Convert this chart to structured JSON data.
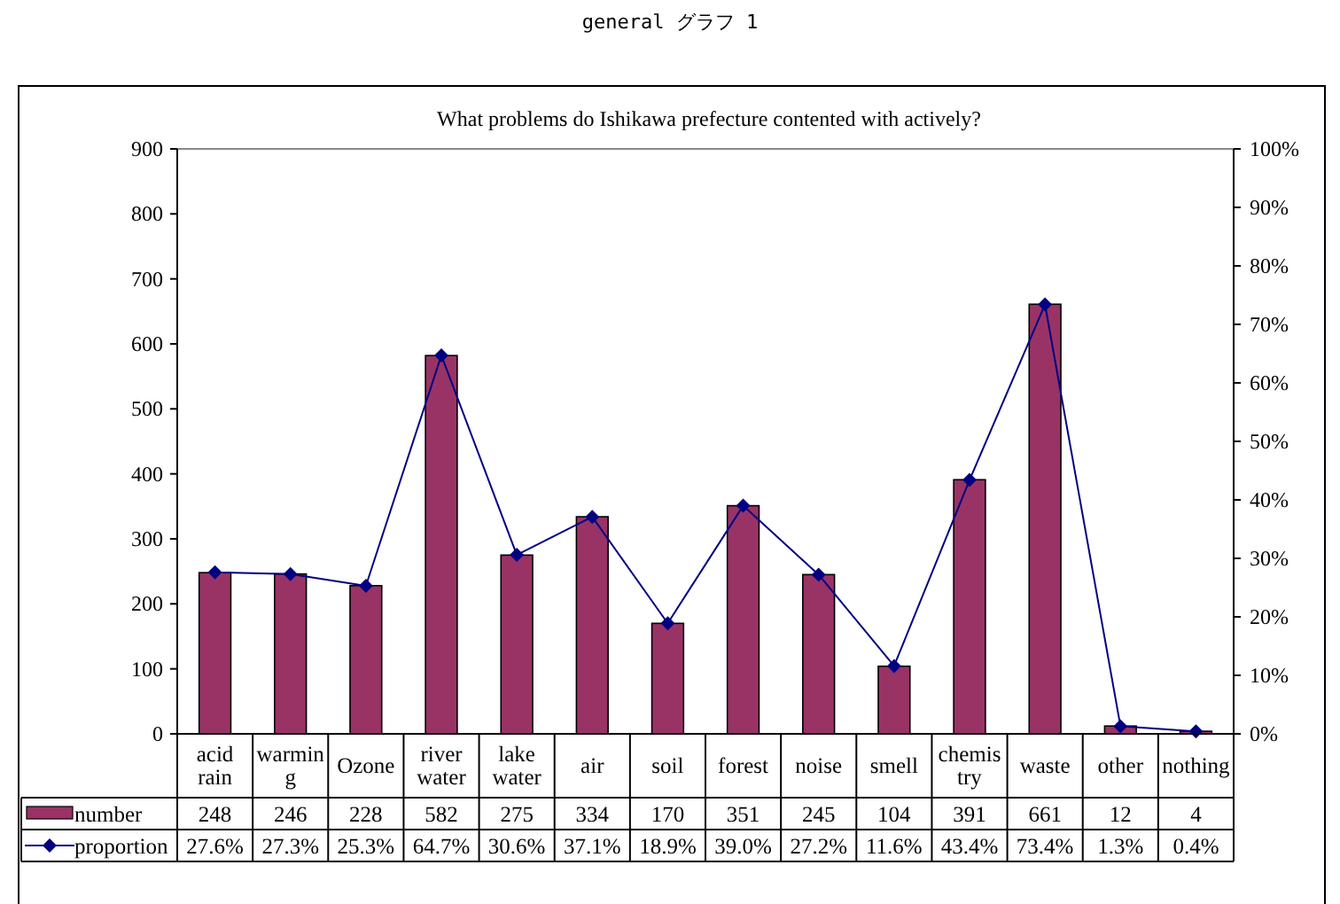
{
  "chart_data": {
    "type": "bar",
    "title": "What problems do Ishikawa prefecture contented with actively?",
    "subtitle": "general グラフ 1",
    "categories": [
      "acid rain",
      "warming",
      "Ozone",
      "river water",
      "lake water",
      "air",
      "soil",
      "forest",
      "noise",
      "smell",
      "chemistry",
      "waste",
      "other",
      "nothing"
    ],
    "series": [
      {
        "name": "number",
        "color": "#993366",
        "values": [
          248,
          246,
          228,
          582,
          275,
          334,
          170,
          351,
          245,
          104,
          391,
          661,
          12,
          4
        ],
        "value_labels": [
          "248",
          "246",
          "228",
          "582",
          "275",
          "334",
          "170",
          "351",
          "245",
          "104",
          "391",
          "661",
          "12",
          "4"
        ]
      },
      {
        "name": "proportion",
        "type": "line",
        "axis": "y2",
        "color": "#000080",
        "marker": "diamond",
        "values": [
          27.6,
          27.3,
          25.3,
          64.7,
          30.6,
          37.1,
          18.9,
          39.0,
          27.2,
          11.6,
          43.4,
          73.4,
          1.3,
          0.4
        ],
        "value_labels": [
          "27.6%",
          "27.3%",
          "25.3%",
          "64.7%",
          "30.6%",
          "37.1%",
          "18.9%",
          "39.0%",
          "27.2%",
          "11.6%",
          "43.4%",
          "73.4%",
          "1.3%",
          "0.4%"
        ]
      }
    ],
    "ylim": [
      0,
      900
    ],
    "yticks": [
      0,
      100,
      200,
      300,
      400,
      500,
      600,
      700,
      800,
      900
    ],
    "y2lim": [
      0,
      100
    ],
    "y2ticks": [
      {
        "value": 0,
        "label": "0%"
      },
      {
        "value": 10,
        "label": "10%"
      },
      {
        "value": 20,
        "label": "20%"
      },
      {
        "value": 30,
        "label": "30%"
      },
      {
        "value": 40,
        "label": "40%"
      },
      {
        "value": 50,
        "label": "50%"
      },
      {
        "value": 60,
        "label": "60%"
      },
      {
        "value": 70,
        "label": "70%"
      },
      {
        "value": 80,
        "label": "80%"
      },
      {
        "value": 90,
        "label": "90%"
      },
      {
        "value": 100,
        "label": "100%"
      }
    ],
    "grid": false,
    "legend": "bottom left"
  }
}
